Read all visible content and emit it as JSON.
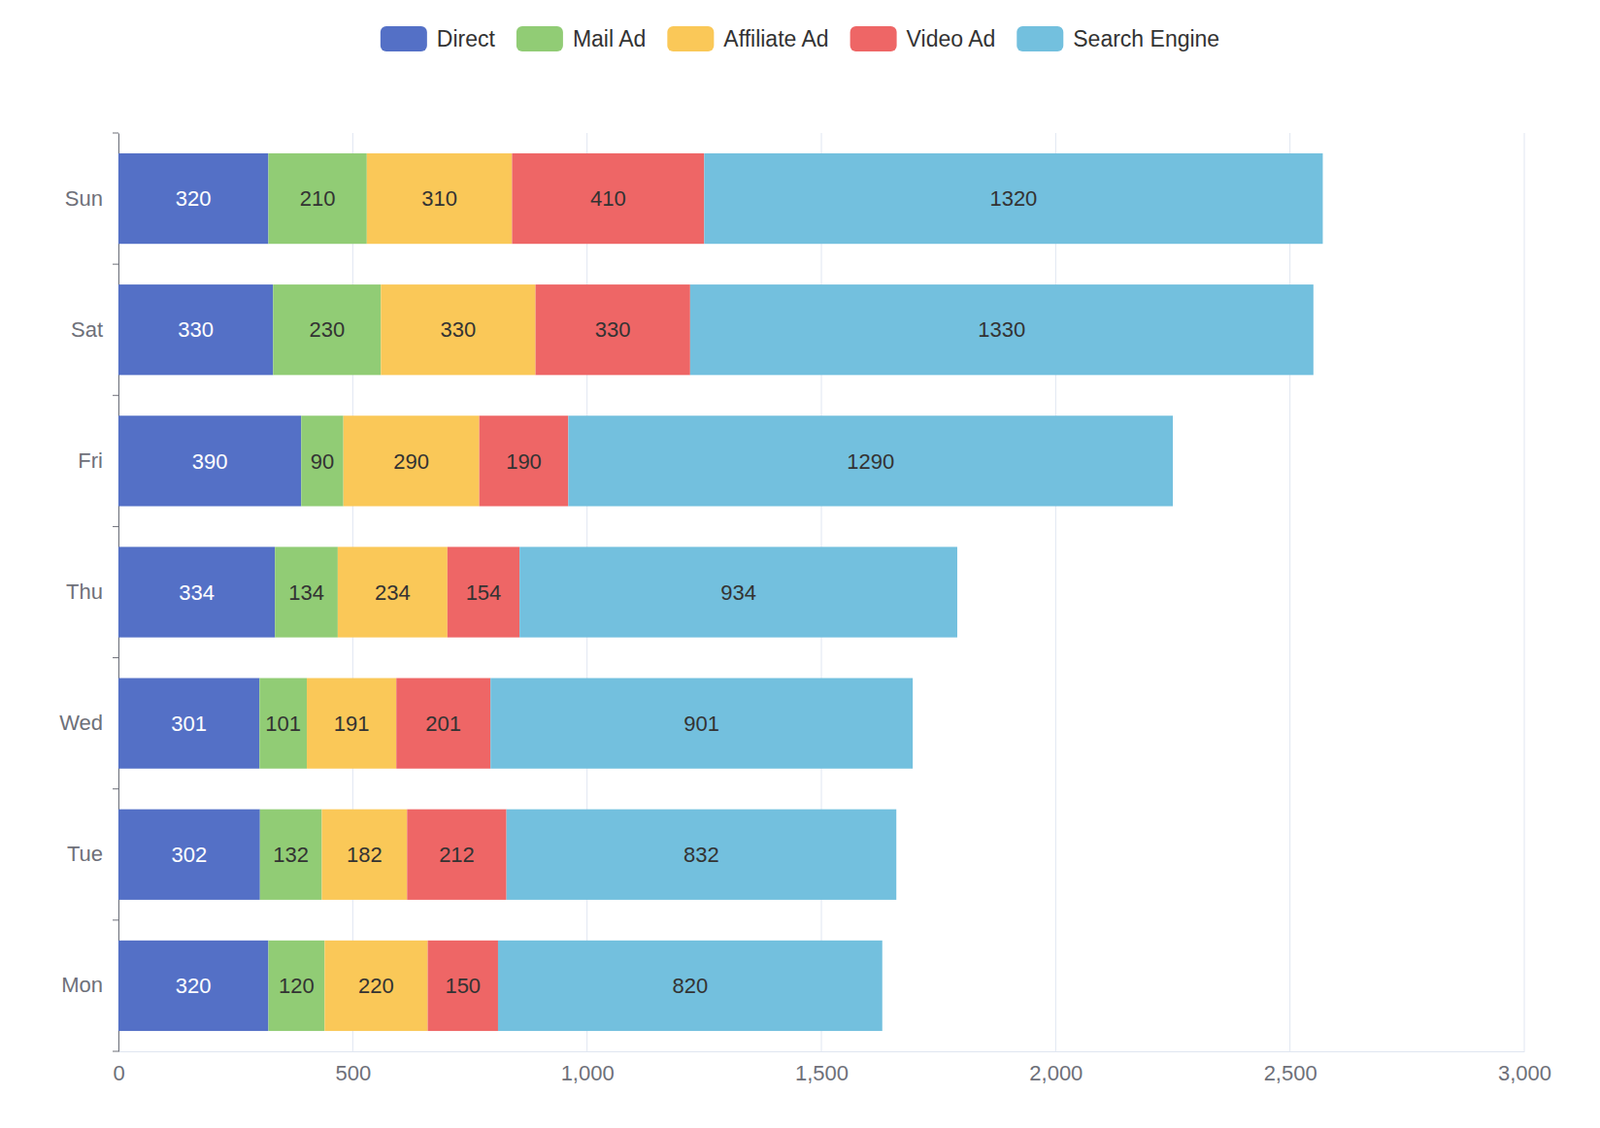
{
  "chart_data": {
    "type": "bar",
    "orientation": "horizontal",
    "stacked": true,
    "data_labels": true,
    "grid": true,
    "legend": "top",
    "categories": [
      "Mon",
      "Tue",
      "Wed",
      "Thu",
      "Fri",
      "Sat",
      "Sun"
    ],
    "series": [
      {
        "name": "Direct",
        "color": "#5470c6",
        "values": [
          320,
          302,
          301,
          334,
          390,
          330,
          320
        ]
      },
      {
        "name": "Mail Ad",
        "color": "#91cc75",
        "values": [
          120,
          132,
          101,
          134,
          90,
          230,
          210
        ]
      },
      {
        "name": "Affiliate Ad",
        "color": "#fac858",
        "values": [
          220,
          182,
          191,
          234,
          290,
          330,
          310
        ]
      },
      {
        "name": "Video Ad",
        "color": "#ee6666",
        "values": [
          150,
          212,
          201,
          154,
          190,
          330,
          410
        ]
      },
      {
        "name": "Search Engine",
        "color": "#73c0de",
        "values": [
          820,
          832,
          901,
          934,
          1290,
          1330,
          1320
        ]
      }
    ],
    "xlim": [
      0,
      3000
    ],
    "xticks": [
      0,
      500,
      {
        "value": 1000,
        "label": "1,000"
      },
      {
        "value": 1500,
        "label": "1,500"
      },
      {
        "value": 2000,
        "label": "2,000"
      },
      {
        "value": 2500,
        "label": "2,500"
      },
      {
        "value": 3000,
        "label": "3,000"
      }
    ]
  }
}
